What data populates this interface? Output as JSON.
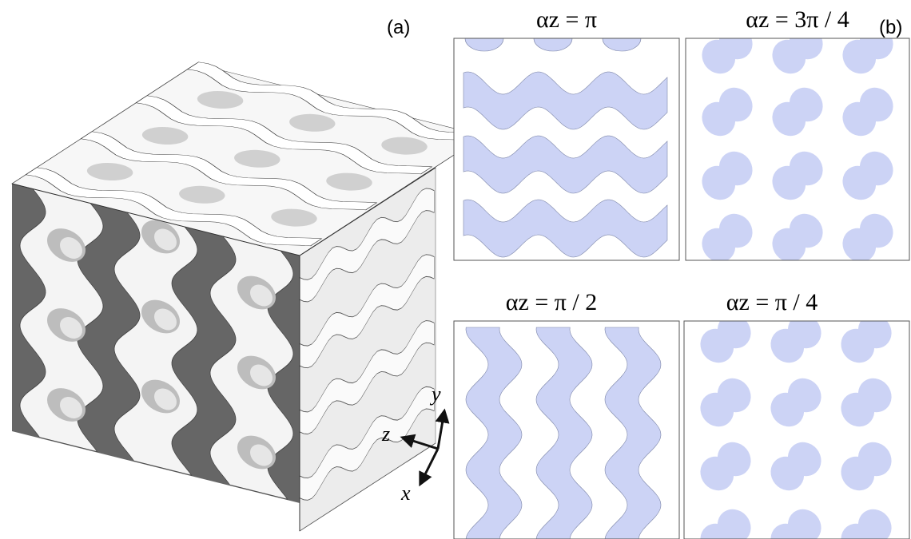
{
  "panel_a": {
    "label": "(a)",
    "axes": {
      "x": "x",
      "y": "y",
      "z": "z"
    }
  },
  "panel_b": {
    "label": "(b)",
    "sections": [
      {
        "label": "αz = π"
      },
      {
        "label": "αz = 3π / 4"
      },
      {
        "label": "αz = π / 2"
      },
      {
        "label": "αz = π / 4"
      }
    ]
  }
}
